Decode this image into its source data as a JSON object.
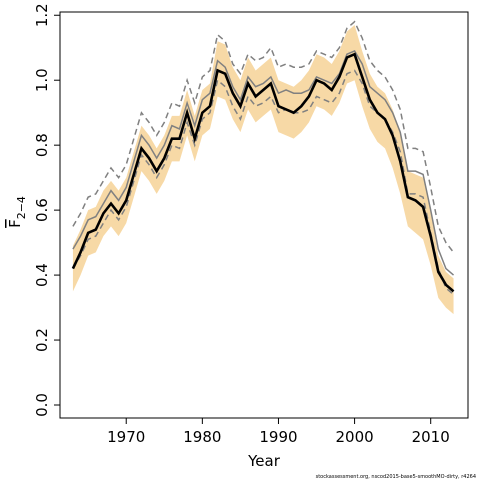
{
  "chart_data": {
    "type": "line",
    "xlabel": "Year",
    "ylabel": "F",
    "ylabel_sub": "2−4",
    "footnote": "stockassessment.org, nscod2015-base5-smoothMO-dirty, r4264",
    "x": [
      1963,
      1964,
      1965,
      1966,
      1967,
      1968,
      1969,
      1970,
      1971,
      1972,
      1973,
      1974,
      1975,
      1976,
      1977,
      1978,
      1979,
      1980,
      1981,
      1982,
      1983,
      1984,
      1985,
      1986,
      1987,
      1988,
      1989,
      1990,
      1991,
      1992,
      1993,
      1994,
      1995,
      1996,
      1997,
      1998,
      1999,
      2000,
      2001,
      2002,
      2003,
      2004,
      2005,
      2006,
      2007,
      2008,
      2009,
      2010,
      2011,
      2012,
      2013
    ],
    "band": {
      "color": "#f7d9a6",
      "upper": [
        0.49,
        0.54,
        0.6,
        0.61,
        0.66,
        0.69,
        0.66,
        0.7,
        0.78,
        0.86,
        0.83,
        0.79,
        0.83,
        0.89,
        0.89,
        0.97,
        0.89,
        0.97,
        0.99,
        1.12,
        1.11,
        1.04,
        1.0,
        1.07,
        1.03,
        1.05,
        1.07,
        1.0,
        0.99,
        0.98,
        1.0,
        1.03,
        1.08,
        1.07,
        1.05,
        1.09,
        1.15,
        1.17,
        1.09,
        1.02,
        0.98,
        0.96,
        0.91,
        0.84,
        0.72,
        0.71,
        0.7,
        0.6,
        0.46,
        0.41,
        0.39
      ],
      "lower": [
        0.35,
        0.4,
        0.46,
        0.47,
        0.52,
        0.55,
        0.52,
        0.56,
        0.64,
        0.72,
        0.69,
        0.65,
        0.69,
        0.75,
        0.75,
        0.83,
        0.75,
        0.83,
        0.85,
        0.95,
        0.94,
        0.88,
        0.84,
        0.91,
        0.87,
        0.89,
        0.91,
        0.84,
        0.83,
        0.82,
        0.84,
        0.87,
        0.92,
        0.91,
        0.89,
        0.93,
        0.99,
        1.0,
        0.92,
        0.85,
        0.81,
        0.79,
        0.73,
        0.65,
        0.55,
        0.53,
        0.51,
        0.43,
        0.33,
        0.3,
        0.28
      ]
    },
    "series": [
      {
        "color": "#808080",
        "dash": true,
        "values": [
          0.55,
          0.59,
          0.64,
          0.65,
          0.69,
          0.73,
          0.7,
          0.74,
          0.82,
          0.9,
          0.87,
          0.83,
          0.87,
          0.93,
          0.92,
          1.0,
          0.93,
          1.01,
          1.03,
          1.14,
          1.12,
          1.05,
          1.02,
          1.08,
          1.06,
          1.07,
          1.1,
          1.04,
          1.05,
          1.04,
          1.04,
          1.05,
          1.09,
          1.08,
          1.07,
          1.1,
          1.16,
          1.18,
          1.13,
          1.06,
          1.03,
          1.01,
          0.97,
          0.91,
          0.79,
          0.79,
          0.78,
          0.67,
          0.55,
          0.5,
          0.47
        ]
      },
      {
        "color": "#808080",
        "dash": true,
        "values": [
          0.42,
          0.46,
          0.51,
          0.52,
          0.56,
          0.6,
          0.57,
          0.61,
          0.69,
          0.77,
          0.74,
          0.7,
          0.74,
          0.8,
          0.79,
          0.87,
          0.8,
          0.88,
          0.9,
          1.0,
          0.98,
          0.92,
          0.88,
          0.95,
          0.92,
          0.93,
          0.95,
          0.9,
          0.91,
          0.9,
          0.9,
          0.91,
          0.95,
          0.94,
          0.93,
          0.96,
          1.02,
          1.03,
          0.99,
          0.92,
          0.9,
          0.88,
          0.84,
          0.78,
          0.65,
          0.65,
          0.64,
          0.53,
          0.42,
          0.36,
          0.34
        ]
      },
      {
        "color": "#808080",
        "dash": false,
        "values": [
          0.48,
          0.52,
          0.57,
          0.58,
          0.62,
          0.66,
          0.63,
          0.67,
          0.75,
          0.83,
          0.8,
          0.76,
          0.8,
          0.86,
          0.85,
          0.93,
          0.86,
          0.94,
          0.96,
          1.06,
          1.04,
          0.98,
          0.94,
          1.01,
          0.98,
          0.99,
          1.01,
          0.96,
          0.97,
          0.96,
          0.96,
          0.97,
          1.01,
          1.0,
          0.99,
          1.02,
          1.08,
          1.09,
          1.05,
          0.98,
          0.96,
          0.94,
          0.9,
          0.84,
          0.72,
          0.72,
          0.71,
          0.6,
          0.48,
          0.42,
          0.4
        ]
      },
      {
        "color": "#000000",
        "dash": false,
        "values": [
          0.42,
          0.47,
          0.53,
          0.54,
          0.59,
          0.62,
          0.59,
          0.63,
          0.71,
          0.79,
          0.76,
          0.72,
          0.76,
          0.82,
          0.82,
          0.9,
          0.82,
          0.9,
          0.92,
          1.03,
          1.02,
          0.96,
          0.92,
          0.99,
          0.95,
          0.97,
          0.99,
          0.92,
          0.91,
          0.9,
          0.92,
          0.95,
          1.0,
          0.99,
          0.97,
          1.01,
          1.07,
          1.08,
          1.01,
          0.94,
          0.9,
          0.88,
          0.83,
          0.75,
          0.64,
          0.63,
          0.61,
          0.52,
          0.41,
          0.37,
          0.35
        ]
      }
    ],
    "xlim": [
      1961.3,
      2014.9
    ],
    "ylim": [
      -0.04,
      1.21
    ],
    "xticks": [
      1970,
      1980,
      1990,
      2000,
      2010
    ],
    "yticks": [
      {
        "value": 0,
        "label": "0.0"
      },
      {
        "value": 0.2,
        "label": "0.2"
      },
      {
        "value": 0.4,
        "label": "0.4"
      },
      {
        "value": 0.6,
        "label": "0.6"
      },
      {
        "value": 0.8,
        "label": "0.8"
      },
      {
        "value": 1,
        "label": "1.0"
      },
      {
        "value": 1.2,
        "label": "1.2"
      }
    ]
  }
}
